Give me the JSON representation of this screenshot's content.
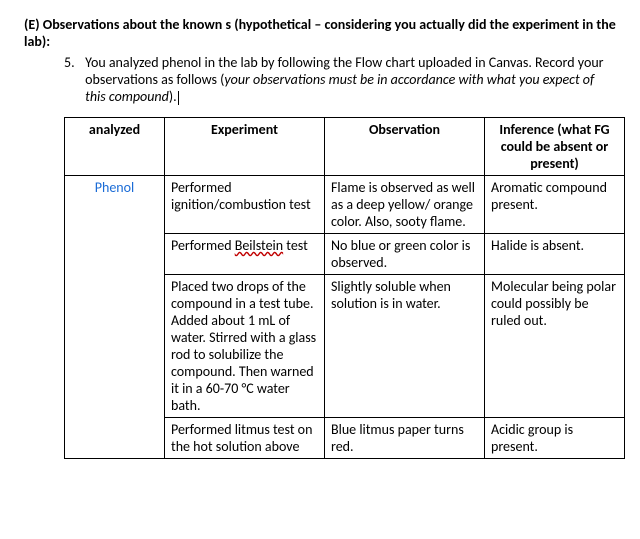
{
  "heading": {
    "label": "(E)",
    "text": "Observations about the known s (hypothetical – considering you actually did the experiment in the lab):"
  },
  "item": {
    "number": "5.",
    "line1": "You analyzed phenol in the lab by following the Flow chart uploaded in Canvas. Record your observations as follows (",
    "italic": "your observations must be in accordance with what you expect of this compound",
    "tail": ")."
  },
  "table": {
    "headers": {
      "c1": "analyzed",
      "c2": "Experiment",
      "c3": "Observation",
      "c4": "Inference (what FG could be absent or present)"
    },
    "analyte": "Phenol",
    "rows": [
      {
        "experiment": "Performed ignition/combustion test",
        "observation": "Flame is observed as well as a deep yellow/ orange color. Also, sooty flame.",
        "inference": "Aromatic compound present."
      },
      {
        "experiment_pre": "Performed ",
        "experiment_err": "Beilstein",
        "experiment_post": " test",
        "observation": "No blue or green color is observed.",
        "inference": "Halide is absent."
      },
      {
        "experiment": "Placed two drops of the compound in a test tube. Added about 1 mL of water. Stirred with a glass rod to solubilize the compound. Then warned it in a 60-70 °C water bath.",
        "observation": "Slightly soluble when solution is in water.",
        "inference": "Molecular being polar could possibly be ruled out."
      },
      {
        "experiment": "Performed litmus test on the hot solution above",
        "observation": "Blue litmus paper turns red.",
        "inference": "Acidic group is present."
      }
    ]
  }
}
